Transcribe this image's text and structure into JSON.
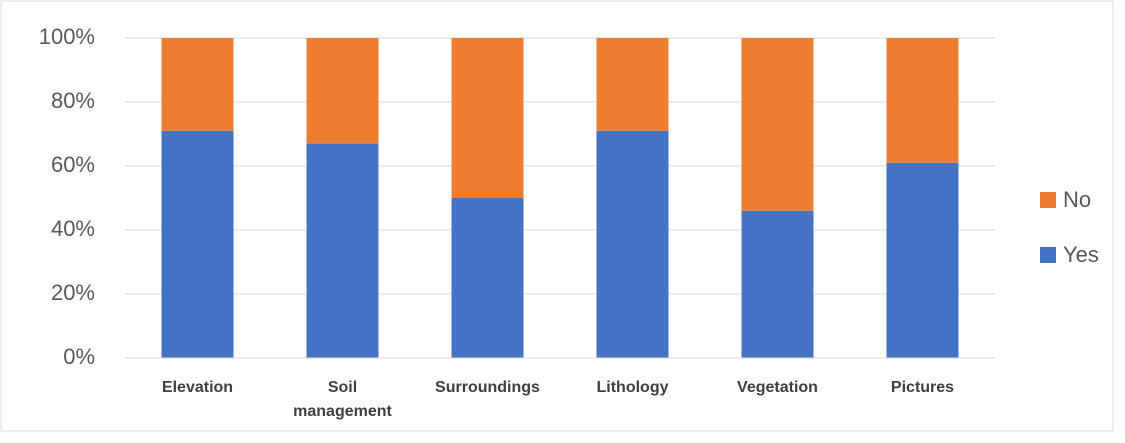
{
  "chart_data": {
    "type": "stacked_bar",
    "categories": [
      "Elevation",
      "Soil management",
      "Surroundings",
      "Lithology",
      "Vegetation",
      "Pictures"
    ],
    "series": [
      {
        "name": "Yes",
        "color": "#4472c4",
        "values": [
          71,
          67,
          50,
          71,
          46,
          61
        ]
      },
      {
        "name": "No",
        "color": "#ed7d31",
        "values": [
          29,
          33,
          50,
          29,
          54,
          39
        ]
      }
    ],
    "ylim": [
      0,
      100
    ],
    "yticks": [
      {
        "value": 0,
        "label": "0%"
      },
      {
        "value": 20,
        "label": "20%"
      },
      {
        "value": 40,
        "label": "40%"
      },
      {
        "value": 60,
        "label": "60%"
      },
      {
        "value": 80,
        "label": "80%"
      },
      {
        "value": 100,
        "label": "100%"
      }
    ],
    "grid": true,
    "legend": "right"
  }
}
